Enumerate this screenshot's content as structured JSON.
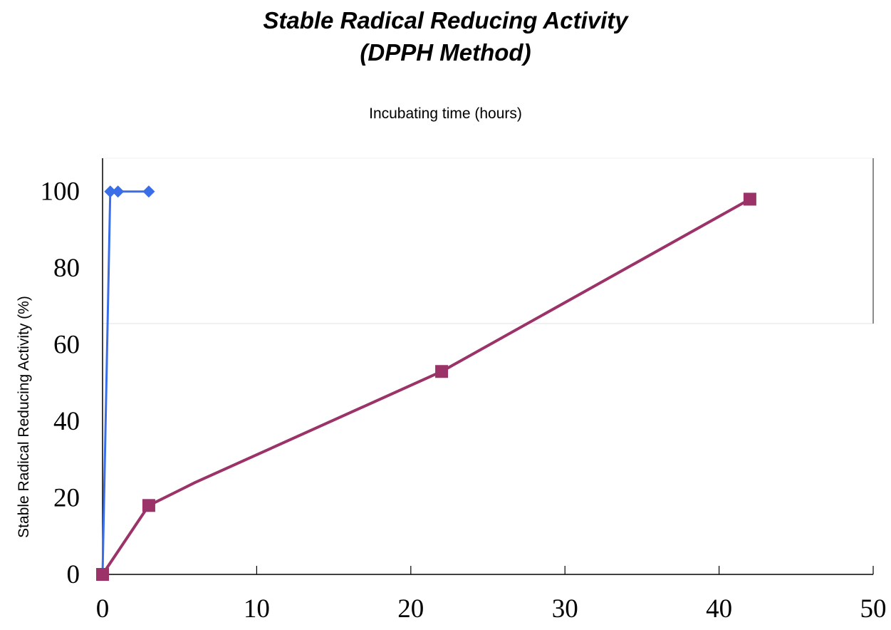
{
  "chart_data": {
    "type": "line",
    "title_lines": [
      "Stable Radical Reducing Activity",
      "(DPPH Method)"
    ],
    "xlabel": "Incubating time (hours)",
    "ylabel": "Stable Radical Reducing Activity (%)",
    "xlim": [
      0,
      50
    ],
    "ylim": [
      0,
      110
    ],
    "x_ticks": [
      0,
      10,
      20,
      30,
      40,
      50
    ],
    "y_ticks": [
      0,
      20,
      40,
      60,
      80,
      100
    ],
    "grid": false,
    "legend": "none",
    "series": [
      {
        "color": "#3a6ee8",
        "marker": "diamond",
        "x": [
          0,
          0.5,
          1,
          3
        ],
        "y": [
          0,
          100,
          100,
          100
        ]
      },
      {
        "color": "#9b3268",
        "marker": "square",
        "x": [
          0,
          3,
          6,
          22,
          42
        ],
        "y": [
          0,
          18,
          24,
          53,
          98
        ],
        "marker_visible": [
          true,
          true,
          false,
          true,
          true
        ]
      }
    ]
  }
}
